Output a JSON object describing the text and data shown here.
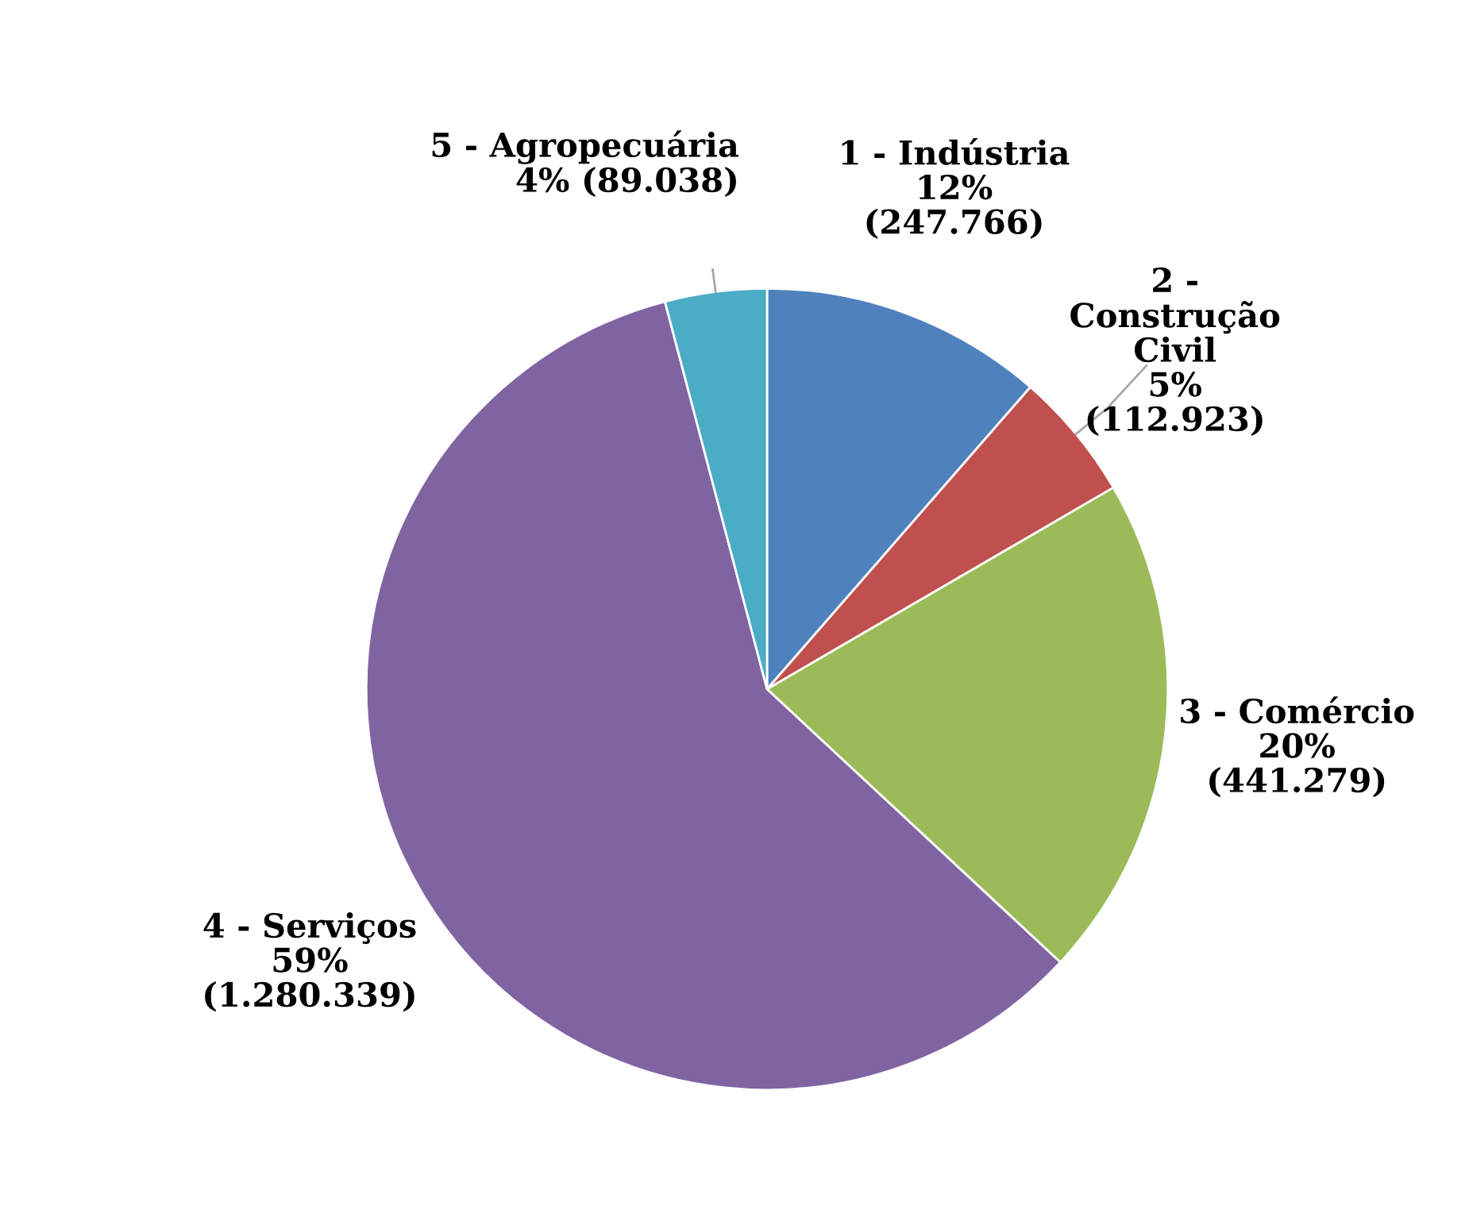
{
  "chart_data": {
    "type": "pie",
    "categories": [
      "1 - Indústria",
      "2 - Construção Civil",
      "3 - Comércio",
      "4 - Serviços",
      "5 - Agropecuária"
    ],
    "values": [
      247766,
      112923,
      441279,
      1280339,
      89038
    ],
    "value_labels": [
      "12%\n(247.766)",
      "5%\n(112.923)",
      "20%\n(441.279)",
      "59%\n(1.280.339)",
      "4% (89.038)"
    ],
    "colors": [
      "#4f81bd",
      "#c0504d",
      "#9bbb59",
      "#8064a2",
      "#4bacc6"
    ]
  }
}
